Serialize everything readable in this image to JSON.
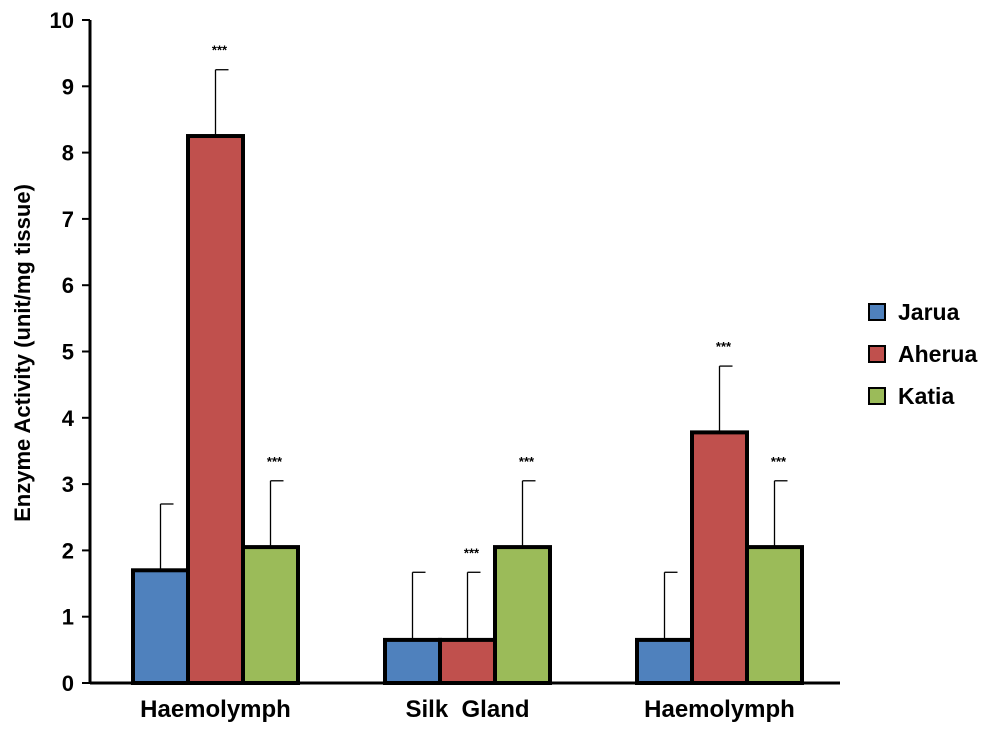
{
  "chart_data": {
    "type": "bar",
    "title": "",
    "xlabel": "",
    "ylabel": "Enzyme Activity (unit/mg tissue)",
    "ylim": [
      0,
      10
    ],
    "yticks": [
      "0",
      "1",
      "2",
      "3",
      "4",
      "5",
      "6",
      "7",
      "8",
      "9",
      "10"
    ],
    "categories": [
      "Haemolymph",
      "Silk  Gland",
      "Haemolymph"
    ],
    "series": [
      {
        "name": "Jarua",
        "color": "#4f81bd",
        "values": [
          1.7,
          0.65,
          0.65
        ],
        "errors": [
          1.0,
          1.02,
          1.02
        ],
        "significance": [
          "",
          "",
          ""
        ]
      },
      {
        "name": "Aherua",
        "color": "#c0504d",
        "values": [
          8.25,
          0.65,
          3.78
        ],
        "errors": [
          1.0,
          1.02,
          1.0
        ],
        "significance": [
          "***",
          "***",
          "***"
        ]
      },
      {
        "name": "Katia",
        "color": "#9bbb59",
        "values": [
          2.05,
          2.05,
          2.05
        ],
        "errors": [
          1.0,
          1.0,
          1.0
        ],
        "significance": [
          "***",
          "***",
          "***"
        ]
      }
    ],
    "legend_position": "right",
    "grid": false
  }
}
